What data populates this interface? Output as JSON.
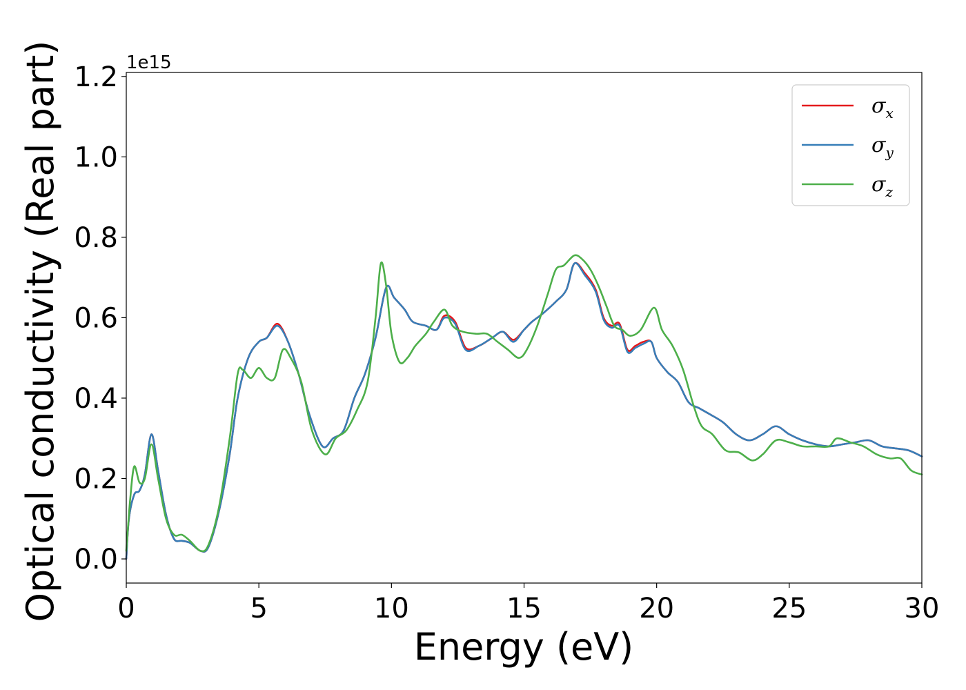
{
  "chart_data": {
    "type": "line",
    "title": "",
    "xlabel": "Energy (eV)",
    "ylabel": "Optical conductivity (Real part)",
    "y_offset_label": "1e15",
    "xlim": [
      0,
      30
    ],
    "ylim": [
      -0.06,
      1.21
    ],
    "x_ticks": [
      0,
      5,
      10,
      15,
      20,
      25,
      30
    ],
    "x_tick_labels": [
      "0",
      "5",
      "10",
      "15",
      "20",
      "25",
      "30"
    ],
    "y_ticks": [
      0.0,
      0.2,
      0.4,
      0.6,
      0.8,
      1.0,
      1.2
    ],
    "y_tick_labels": [
      "0.0",
      "0.2",
      "0.4",
      "0.6",
      "0.8",
      "1.0",
      "1.2"
    ],
    "grid": false,
    "legend_position": "top-right",
    "series": [
      {
        "name": "σx",
        "symbol": "σ",
        "subscript": "x",
        "color": "#e41a1c",
        "x": [
          0,
          0.1,
          0.3,
          0.5,
          0.7,
          0.95,
          1.2,
          1.5,
          1.8,
          2.1,
          2.4,
          2.8,
          3.1,
          3.5,
          3.9,
          4.2,
          4.6,
          5.0,
          5.3,
          5.7,
          6.1,
          6.5,
          6.9,
          7.4,
          7.8,
          8.2,
          8.6,
          9.0,
          9.4,
          9.8,
          10.1,
          10.5,
          10.8,
          11.3,
          11.7,
          12.0,
          12.4,
          12.8,
          13.3,
          13.8,
          14.2,
          14.6,
          15.0,
          15.3,
          15.7,
          16.2,
          16.6,
          16.9,
          17.3,
          17.7,
          18.0,
          18.3,
          18.6,
          18.9,
          19.2,
          19.5,
          19.8,
          20.0,
          20.4,
          20.8,
          21.2,
          21.6,
          22.0,
          22.5,
          23.0,
          23.5,
          24.0,
          24.5,
          25.0,
          25.5,
          26.0,
          26.5,
          27.0,
          27.5,
          28.0,
          28.5,
          29.0,
          29.5,
          30.0
        ],
        "values": [
          0.0,
          0.1,
          0.16,
          0.17,
          0.21,
          0.31,
          0.22,
          0.11,
          0.05,
          0.045,
          0.04,
          0.02,
          0.03,
          0.12,
          0.26,
          0.4,
          0.5,
          0.54,
          0.55,
          0.585,
          0.54,
          0.46,
          0.36,
          0.28,
          0.3,
          0.32,
          0.4,
          0.46,
          0.55,
          0.675,
          0.65,
          0.62,
          0.59,
          0.58,
          0.57,
          0.605,
          0.59,
          0.525,
          0.53,
          0.55,
          0.565,
          0.545,
          0.57,
          0.59,
          0.61,
          0.64,
          0.67,
          0.735,
          0.71,
          0.67,
          0.6,
          0.58,
          0.585,
          0.52,
          0.53,
          0.54,
          0.54,
          0.5,
          0.465,
          0.44,
          0.39,
          0.375,
          0.36,
          0.34,
          0.31,
          0.295,
          0.31,
          0.33,
          0.31,
          0.295,
          0.285,
          0.28,
          0.285,
          0.29,
          0.295,
          0.28,
          0.275,
          0.27,
          0.255
        ]
      },
      {
        "name": "σy",
        "symbol": "σ",
        "subscript": "y",
        "color": "#377eb8",
        "x": [
          0,
          0.1,
          0.3,
          0.5,
          0.7,
          0.95,
          1.2,
          1.5,
          1.8,
          2.1,
          2.4,
          2.8,
          3.1,
          3.5,
          3.9,
          4.2,
          4.6,
          5.0,
          5.3,
          5.7,
          6.1,
          6.5,
          6.9,
          7.4,
          7.8,
          8.2,
          8.6,
          9.0,
          9.4,
          9.8,
          10.1,
          10.5,
          10.8,
          11.3,
          11.7,
          12.0,
          12.4,
          12.8,
          13.3,
          13.8,
          14.2,
          14.6,
          15.0,
          15.3,
          15.7,
          16.2,
          16.6,
          16.9,
          17.3,
          17.7,
          18.0,
          18.3,
          18.6,
          18.9,
          19.2,
          19.5,
          19.8,
          20.0,
          20.4,
          20.8,
          21.2,
          21.6,
          22.0,
          22.5,
          23.0,
          23.5,
          24.0,
          24.5,
          25.0,
          25.5,
          26.0,
          26.5,
          27.0,
          27.5,
          28.0,
          28.5,
          29.0,
          29.5,
          30.0
        ],
        "values": [
          0.0,
          0.1,
          0.16,
          0.17,
          0.21,
          0.31,
          0.22,
          0.11,
          0.05,
          0.045,
          0.04,
          0.02,
          0.03,
          0.12,
          0.26,
          0.4,
          0.5,
          0.54,
          0.55,
          0.58,
          0.54,
          0.46,
          0.36,
          0.28,
          0.3,
          0.32,
          0.4,
          0.46,
          0.55,
          0.675,
          0.65,
          0.62,
          0.59,
          0.58,
          0.57,
          0.6,
          0.585,
          0.52,
          0.53,
          0.55,
          0.565,
          0.54,
          0.57,
          0.59,
          0.61,
          0.64,
          0.67,
          0.735,
          0.705,
          0.665,
          0.595,
          0.575,
          0.58,
          0.515,
          0.525,
          0.535,
          0.54,
          0.5,
          0.465,
          0.44,
          0.39,
          0.375,
          0.36,
          0.34,
          0.31,
          0.295,
          0.31,
          0.33,
          0.31,
          0.295,
          0.285,
          0.28,
          0.285,
          0.29,
          0.295,
          0.28,
          0.275,
          0.27,
          0.255
        ]
      },
      {
        "name": "σz",
        "symbol": "σ",
        "subscript": "z",
        "color": "#4daf4a",
        "x": [
          0,
          0.15,
          0.3,
          0.5,
          0.7,
          0.95,
          1.2,
          1.5,
          1.8,
          2.1,
          2.4,
          2.8,
          3.1,
          3.5,
          3.9,
          4.2,
          4.4,
          4.7,
          5.0,
          5.3,
          5.6,
          5.9,
          6.2,
          6.6,
          7.0,
          7.5,
          7.9,
          8.3,
          8.7,
          9.1,
          9.4,
          9.6,
          9.8,
          10.0,
          10.3,
          10.6,
          10.9,
          11.3,
          11.6,
          12.0,
          12.3,
          12.7,
          13.2,
          13.6,
          14.0,
          14.4,
          14.8,
          15.1,
          15.5,
          15.9,
          16.2,
          16.5,
          16.9,
          17.2,
          17.5,
          17.8,
          18.1,
          18.4,
          18.7,
          19.0,
          19.4,
          19.9,
          20.2,
          20.6,
          21.0,
          21.4,
          21.7,
          22.1,
          22.6,
          23.1,
          23.6,
          24.0,
          24.5,
          25.0,
          25.5,
          26.0,
          26.5,
          26.8,
          27.3,
          27.8,
          28.3,
          28.8,
          29.2,
          29.6,
          30.0
        ],
        "values": [
          0.02,
          0.15,
          0.23,
          0.19,
          0.2,
          0.285,
          0.2,
          0.1,
          0.06,
          0.06,
          0.045,
          0.02,
          0.035,
          0.13,
          0.3,
          0.46,
          0.47,
          0.45,
          0.475,
          0.45,
          0.45,
          0.52,
          0.5,
          0.44,
          0.32,
          0.26,
          0.3,
          0.32,
          0.37,
          0.44,
          0.6,
          0.735,
          0.68,
          0.56,
          0.49,
          0.5,
          0.53,
          0.56,
          0.59,
          0.62,
          0.58,
          0.565,
          0.56,
          0.56,
          0.54,
          0.52,
          0.5,
          0.52,
          0.58,
          0.66,
          0.72,
          0.73,
          0.755,
          0.745,
          0.72,
          0.68,
          0.63,
          0.58,
          0.57,
          0.555,
          0.57,
          0.625,
          0.57,
          0.53,
          0.47,
          0.38,
          0.33,
          0.31,
          0.27,
          0.265,
          0.245,
          0.26,
          0.295,
          0.29,
          0.28,
          0.28,
          0.28,
          0.3,
          0.29,
          0.28,
          0.26,
          0.25,
          0.25,
          0.22,
          0.21
        ]
      }
    ]
  }
}
